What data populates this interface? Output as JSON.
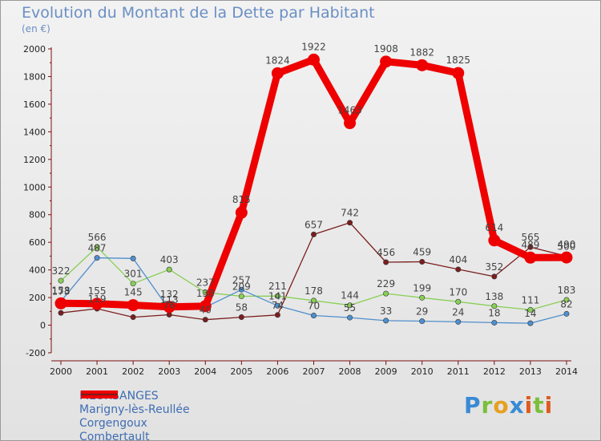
{
  "chart_data": {
    "type": "line",
    "title": "Evolution du Montant de la Dette par Habitant",
    "subtitle": "(en €)",
    "x": [
      "2000",
      "2001",
      "2002",
      "2003",
      "2004",
      "2005",
      "2006",
      "2007",
      "2008",
      "2009",
      "2010",
      "2011",
      "2012",
      "2013",
      "2014"
    ],
    "ylim": [
      -200,
      2000
    ],
    "yticks": [
      -200,
      0,
      200,
      400,
      600,
      800,
      1000,
      1200,
      1400,
      1600,
      1800,
      2000
    ],
    "grid": false,
    "legend_position": "bottom-left",
    "series": [
      {
        "name": "MEURSANGES",
        "color": "#ee0000",
        "values": [
          158,
          155,
          145,
          132,
          138,
          815,
          1824,
          1922,
          1463,
          1908,
          1882,
          1825,
          614,
          489,
          490
        ],
        "labels": [
          "158",
          "155",
          "145",
          "132",
          "138",
          "815",
          "1824",
          "1922",
          "1463",
          "1908",
          "1882",
          "1825",
          "614",
          "489",
          "490"
        ]
      },
      {
        "name": "Marigny-lès-Reullée",
        "color": "#4f8fce",
        "values": [
          173,
          487,
          483,
          113,
          130,
          257,
          141,
          70,
          55,
          33,
          29,
          24,
          18,
          14,
          82
        ],
        "labels": [
          "173",
          "487",
          "",
          "113",
          "",
          "257",
          "141",
          "70",
          "55",
          "33",
          "29",
          "24",
          "18",
          "14",
          "82"
        ]
      },
      {
        "name": "Corgengoux",
        "color": "#88cf55",
        "values": [
          322,
          566,
          301,
          403,
          237,
          209,
          211,
          178,
          144,
          229,
          199,
          170,
          138,
          111,
          183
        ],
        "labels": [
          "322",
          "566",
          "301",
          "403",
          "237",
          "209",
          "211",
          "178",
          "144",
          "229",
          "199",
          "170",
          "138",
          "111",
          "183"
        ]
      },
      {
        "name": "Combertault",
        "color": "#7a1e1e",
        "values": [
          89,
          119,
          58,
          76,
          40,
          58,
          74,
          657,
          742,
          456,
          459,
          404,
          352,
          565,
          500
        ],
        "labels": [
          "",
          "119",
          "",
          "76",
          "40",
          "58",
          "74",
          "657",
          "742",
          "456",
          "459",
          "404",
          "352",
          "565",
          "500"
        ]
      }
    ]
  },
  "logo": {
    "text": "Proxiti"
  }
}
